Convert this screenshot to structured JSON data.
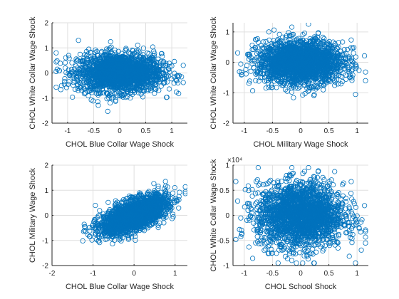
{
  "figure": {
    "background": "#ffffff"
  },
  "style": {
    "marker_color": "#0072BD",
    "grid_color": "#dfdfdf",
    "axis_color": "#262626"
  },
  "chart_data": [
    {
      "type": "scatter",
      "xlabel": "CHOL Blue Collar Wage Shock",
      "ylabel": "CHOL White Collar Wage Shock",
      "xlim": [
        -1.3,
        1.3
      ],
      "ylim": [
        -2,
        2
      ],
      "xticks": [
        -1,
        -0.5,
        0,
        0.5,
        1
      ],
      "xtick_labels": [
        "-1",
        "-0.5",
        "0",
        "0.5",
        "1"
      ],
      "yticks": [
        -2,
        -1,
        0,
        1,
        2
      ],
      "ytick_labels": [
        "-2",
        "-1",
        "0",
        "1",
        "2"
      ],
      "exponent_label": "",
      "grid": true,
      "marker": "open-circle",
      "distribution": {
        "n": 2200,
        "x_mean": 0.0,
        "y_mean": 0.0,
        "x_sd": 0.4,
        "y_sd": 0.38,
        "correlation": 0.0,
        "x_min": -1.22,
        "x_max": 1.22,
        "y_min": -1.6,
        "y_max": 1.3
      }
    },
    {
      "type": "scatter",
      "xlabel": "CHOL Military Wage Shock",
      "ylabel": "CHOL White Collar Wage Shock",
      "xlim": [
        -1.2,
        1.2
      ],
      "ylim": [
        -2,
        1.3
      ],
      "xticks": [
        -1,
        -0.5,
        0,
        0.5,
        1
      ],
      "xtick_labels": [
        "-1",
        "-0.5",
        "0",
        "0.5",
        "1"
      ],
      "yticks": [
        -2,
        -1,
        0,
        1
      ],
      "ytick_labels": [
        "-2",
        "-1",
        "0",
        "1"
      ],
      "exponent_label": "",
      "grid": true,
      "marker": "open-circle",
      "distribution": {
        "n": 2200,
        "x_mean": 0.0,
        "y_mean": 0.0,
        "x_sd": 0.38,
        "y_sd": 0.35,
        "correlation": 0.0,
        "x_min": -1.15,
        "x_max": 1.15,
        "y_min": -1.4,
        "y_max": 1.3
      }
    },
    {
      "type": "scatter",
      "xlabel": "CHOL Blue Collar Wage Shock",
      "ylabel": "CHOL Military Wage Shock",
      "xlim": [
        -2,
        1.3
      ],
      "ylim": [
        -2,
        2
      ],
      "xticks": [
        -2,
        -1,
        0,
        1
      ],
      "xtick_labels": [
        "-2",
        "-1",
        "0",
        "1"
      ],
      "yticks": [
        -2,
        -1,
        0,
        1,
        2
      ],
      "ytick_labels": [
        "-2",
        "-1",
        "0",
        "1",
        "2"
      ],
      "exponent_label": "",
      "grid": true,
      "marker": "open-circle",
      "distribution": {
        "n": 2200,
        "x_mean": 0.0,
        "y_mean": 0.0,
        "x_sd": 0.4,
        "y_sd": 0.38,
        "correlation": 0.62,
        "x_min": -1.4,
        "x_max": 1.25,
        "y_min": -1.6,
        "y_max": 1.35
      }
    },
    {
      "type": "scatter",
      "xlabel": "CHOL School Shock",
      "ylabel": "CHOL White Collar Wage Shock",
      "xlim": [
        -1.2,
        1.2
      ],
      "ylim": [
        -10000,
        10000
      ],
      "xticks": [
        -1,
        -0.5,
        0,
        0.5,
        1
      ],
      "xtick_labels": [
        "-1",
        "-0.5",
        "0",
        "0.5",
        "1"
      ],
      "yticks": [
        -10000,
        -5000,
        0,
        5000,
        10000
      ],
      "ytick_labels": [
        "-1",
        "-0.5",
        "0",
        "0.5",
        "1"
      ],
      "exponent_label": "×10⁴",
      "grid": true,
      "marker": "open-circle",
      "distribution": {
        "n": 2200,
        "x_mean": 0.0,
        "y_mean": 0.0,
        "x_sd": 0.38,
        "y_sd": 3200,
        "correlation": 0.0,
        "x_min": -1.15,
        "x_max": 1.15,
        "y_min": -9500,
        "y_max": 9500
      }
    }
  ]
}
